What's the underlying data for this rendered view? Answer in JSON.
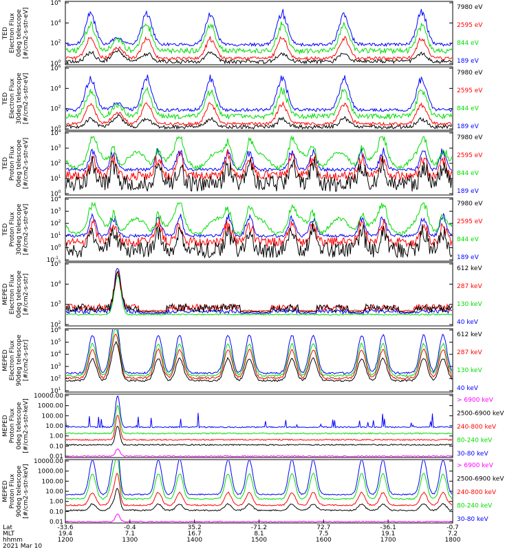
{
  "chart_data": {
    "type": "line",
    "date_label": "2021 Mar 10",
    "x_axis": {
      "row_labels": [
        "Lat",
        "MLT",
        "hhmm"
      ],
      "ticks": [
        {
          "lat": "-33.6",
          "mlt": "19.4",
          "hhmm": "1200"
        },
        {
          "lat": "-0.4",
          "mlt": "7.1",
          "hhmm": "1300"
        },
        {
          "lat": "35.2",
          "mlt": "16.7",
          "hhmm": "1400"
        },
        {
          "lat": "-71.2",
          "mlt": "8.1",
          "hhmm": "1500"
        },
        {
          "lat": "72.7",
          "mlt": "7.5",
          "hhmm": "1600"
        },
        {
          "lat": "-36.1",
          "mlt": "19.1",
          "hhmm": "1700"
        },
        {
          "lat": "-0.7",
          "mlt": "7.2",
          "hhmm": "1800"
        }
      ]
    },
    "panels": [
      {
        "ylabel": [
          "TED",
          "Electron Flux",
          "0deg telescope",
          "[#/cm2-s-str-eV]"
        ],
        "yticks": [
          "10^6",
          "10^4",
          "10^2",
          "10^0"
        ],
        "legend": [
          {
            "name": "7980 eV",
            "color": "#000000"
          },
          {
            "name": "2595 eV",
            "color": "#ff0000"
          },
          {
            "name": "844 eV",
            "color": "#00dd00"
          },
          {
            "name": "189 eV",
            "color": "#0000ff"
          }
        ],
        "style": "ted_e"
      },
      {
        "ylabel": [
          "TED",
          "Electron Flux",
          "30deg telescope",
          "[#/cm2-s-str-eV]"
        ],
        "yticks": [
          "10^6",
          "10^4",
          "10^2",
          "10^0"
        ],
        "legend": [
          {
            "name": "7980 eV",
            "color": "#000000"
          },
          {
            "name": "2595 eV",
            "color": "#ff0000"
          },
          {
            "name": "844 eV",
            "color": "#00dd00"
          },
          {
            "name": "189 eV",
            "color": "#0000ff"
          }
        ],
        "style": "ted_e"
      },
      {
        "ylabel": [
          "TED",
          "Proton Flux",
          "0deg telescope",
          "[#/cm2-s-str-eV]"
        ],
        "yticks": [
          "10^4",
          "10^3",
          "10^2",
          "10^1",
          "10^0"
        ],
        "legend": [
          {
            "name": "7980 eV",
            "color": "#000000"
          },
          {
            "name": "2595 eV",
            "color": "#ff0000"
          },
          {
            "name": "844 eV",
            "color": "#00dd00"
          },
          {
            "name": "189 eV",
            "color": "#0000ff"
          }
        ],
        "style": "ted_p"
      },
      {
        "ylabel": [
          "TED",
          "Proton Flux",
          "30deg telescope",
          "[#/cm2-s-str-eV]"
        ],
        "yticks": [
          "10^4",
          "10^3",
          "10^2",
          "10^1",
          "10^0",
          "10^-1"
        ],
        "legend": [
          {
            "name": "7980 eV",
            "color": "#000000"
          },
          {
            "name": "2595 eV",
            "color": "#ff0000"
          },
          {
            "name": "844 eV",
            "color": "#00dd00"
          },
          {
            "name": "189 eV",
            "color": "#0000ff"
          }
        ],
        "style": "ted_p"
      },
      {
        "ylabel": [
          "MEPED",
          "Electron Flux",
          "0deg telescope",
          "[#/cm2-s-str]"
        ],
        "yticks": [
          "10^5",
          "10^4",
          "10^3",
          "10^2"
        ],
        "legend": [
          {
            "name": "612 keV",
            "color": "#000000"
          },
          {
            "name": "287 keV",
            "color": "#ff0000"
          },
          {
            "name": "130 keV",
            "color": "#00dd00"
          },
          {
            "name": "40 keV",
            "color": "#0000ff"
          }
        ],
        "style": "meped0"
      },
      {
        "ylabel": [
          "MEPED",
          "Electron Flux",
          "90deg telescope",
          "[#/cm2-s-str]"
        ],
        "yticks": [
          "10^6",
          "10^5",
          "10^4",
          "10^3",
          "10^2",
          "10^1"
        ],
        "legend": [
          {
            "name": "612 keV",
            "color": "#000000"
          },
          {
            "name": "287 keV",
            "color": "#ff0000"
          },
          {
            "name": "130 keV",
            "color": "#00dd00"
          },
          {
            "name": "40 keV",
            "color": "#0000ff"
          }
        ],
        "style": "meped90"
      },
      {
        "ylabel": [
          "MEPED",
          "Proton Flux",
          "0deg telescope",
          "[#/cm2-s-str-keV]"
        ],
        "yticks": [
          "10000.00",
          "1000.00",
          "100.00",
          "10.00",
          "1.00",
          "0.10",
          "0.01"
        ],
        "legend": [
          {
            "name": "> 6900 keV",
            "color": "#ff00ff"
          },
          {
            "name": "2500-6900 keV",
            "color": "#000000"
          },
          {
            "name": "240-800 keV",
            "color": "#ff0000"
          },
          {
            "name": "80-240 keV",
            "color": "#00dd00"
          },
          {
            "name": "30-80 keV",
            "color": "#0000ff"
          }
        ],
        "style": "pro0"
      },
      {
        "ylabel": [
          "MEPED",
          "Proton Flux",
          "90deg telescope",
          "[#/cm2-s-str-keV]"
        ],
        "yticks": [
          "10000.00",
          "1000.00",
          "100.00",
          "10.00",
          "1.00",
          "0.10",
          "0.01"
        ],
        "legend": [
          {
            "name": "> 6900 keV",
            "color": "#ff00ff"
          },
          {
            "name": "2500-6900 keV",
            "color": "#000000"
          },
          {
            "name": "240-800 keV",
            "color": "#ff0000"
          },
          {
            "name": "80-240 keV",
            "color": "#00dd00"
          },
          {
            "name": "30-80 keV",
            "color": "#0000ff"
          }
        ],
        "style": "pro90"
      }
    ]
  }
}
